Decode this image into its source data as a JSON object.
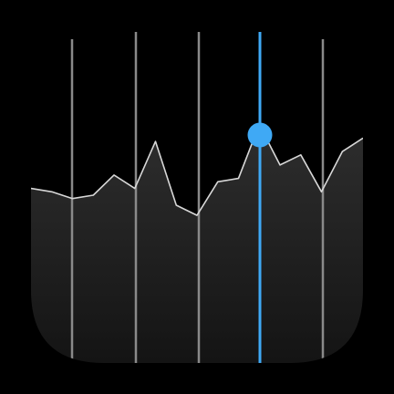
{
  "icon": {
    "name": "stocks-app-icon",
    "background_color": "#000000",
    "fill_gradient_top": "#2e2e2e",
    "fill_gradient_bottom": "#141414",
    "line_color": "#d8d8d8",
    "grid_line_color": "#8a8a8a",
    "highlight_color": "#3fa9f5"
  },
  "chart_data": {
    "type": "area",
    "title": "",
    "xlabel": "",
    "ylabel": "",
    "grid": true,
    "series": [
      {
        "values": [
          52,
          51,
          49,
          50,
          56,
          52,
          66,
          47,
          44,
          54,
          55,
          71,
          59,
          62,
          51,
          63,
          67
        ]
      }
    ],
    "highlighted_index": 11,
    "ylim": [
      0,
      100
    ]
  }
}
